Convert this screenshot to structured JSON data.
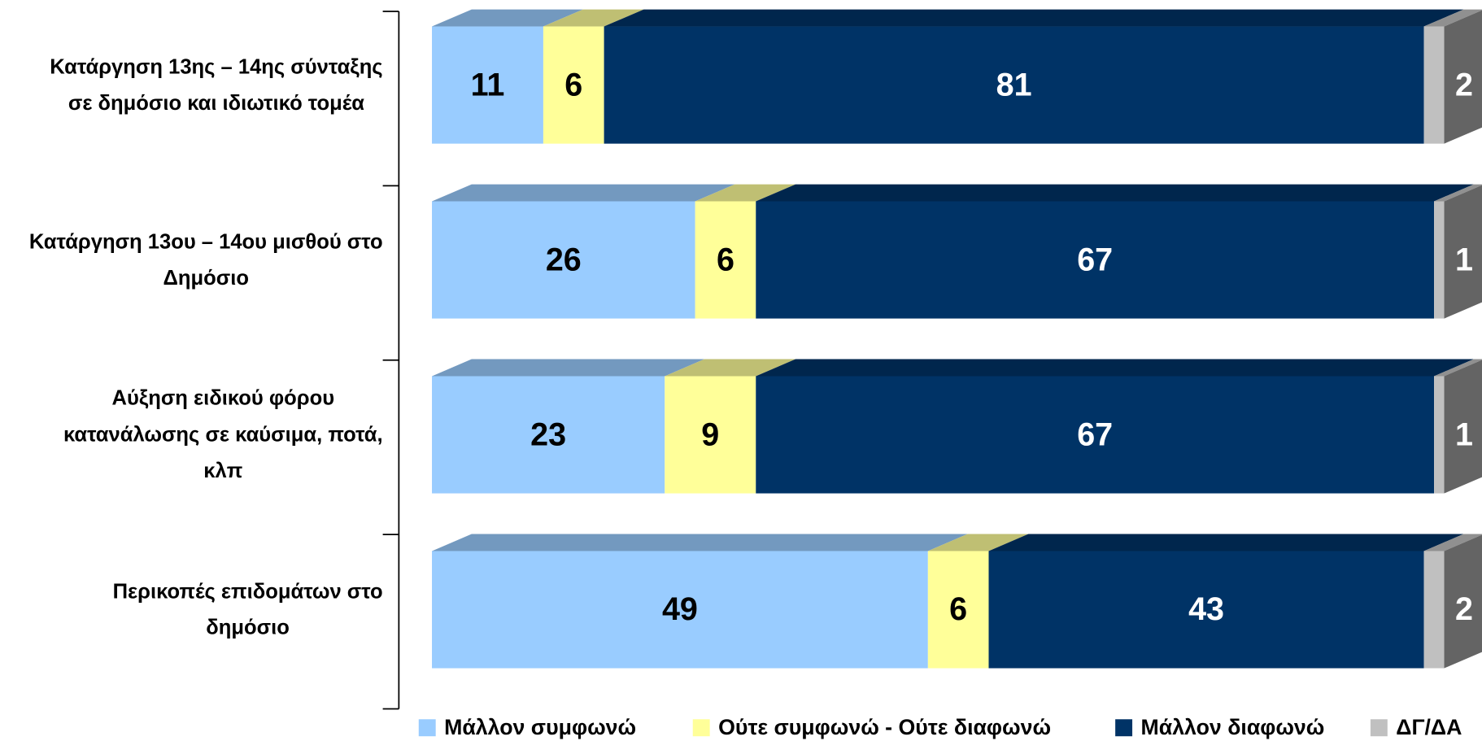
{
  "chart_data": {
    "type": "bar3d_stacked_horizontal",
    "categories": [
      "Κατάργηση 13ης – 14ης σύνταξης\nσε δημόσιο και ιδιωτικό τομέα",
      "Κατάργηση 13ου – 14ου μισθού στο\nΔημόσιο",
      "Αύξηση ειδικού φόρου\nκατανάλωσης σε καύσιμα, ποτά,\nκλπ",
      "Περικοπές επιδομάτων στο\nδημόσιο"
    ],
    "series": [
      {
        "name": "Μάλλον συμφωνώ",
        "color": "#99ccff",
        "label_color": "#000000",
        "values": [
          11,
          26,
          23,
          49
        ]
      },
      {
        "name": "Ούτε συμφωνώ - Ούτε διαφωνώ",
        "color": "#ffff99",
        "label_color": "#000000",
        "values": [
          6,
          6,
          9,
          6
        ]
      },
      {
        "name": "Μάλλον διαφωνώ",
        "color": "#003366",
        "label_color": "#ffffff",
        "values": [
          81,
          67,
          67,
          43
        ]
      },
      {
        "name": "ΔΓ/ΔΑ",
        "color": "#c0c0c0",
        "label_color": "#ffffff",
        "values": [
          2,
          1,
          1,
          2
        ]
      }
    ],
    "legend": "bottom"
  }
}
